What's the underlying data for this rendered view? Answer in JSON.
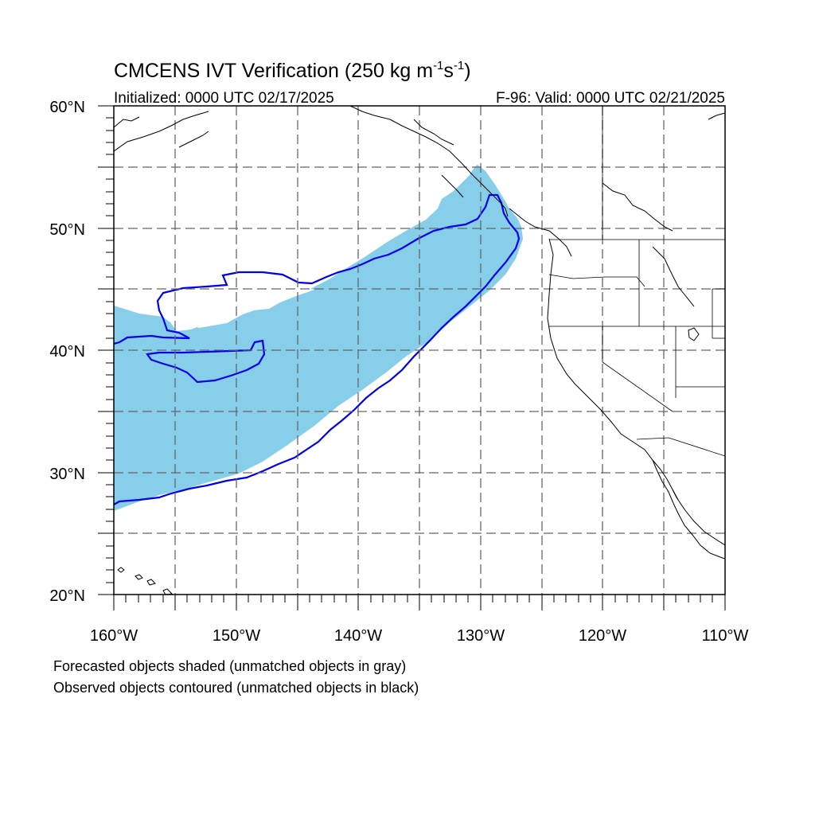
{
  "title": {
    "main": "CMCENS IVT Verification (250 kg m",
    "sup1": "-1",
    "mid": "s",
    "sup2": "-1",
    "close": ")"
  },
  "initialized": "Initialized: 0000 UTC 02/17/2025",
  "valid": "F-96: Valid: 0000 UTC 02/21/2025",
  "lat_labels": [
    "60°N",
    "50°N",
    "40°N",
    "30°N",
    "20°N"
  ],
  "lon_labels": [
    "160°W",
    "150°W",
    "140°W",
    "130°W",
    "120°W",
    "110°W"
  ],
  "legend": {
    "line1": "Forecasted objects shaded (unmatched objects in gray)",
    "line2": "Observed objects contoured (unmatched objects in black)"
  },
  "colors": {
    "forecast_fill": "#87ceea",
    "observed_contour": "#0000ee",
    "coastline": "#000000",
    "grid": "#666666"
  }
}
